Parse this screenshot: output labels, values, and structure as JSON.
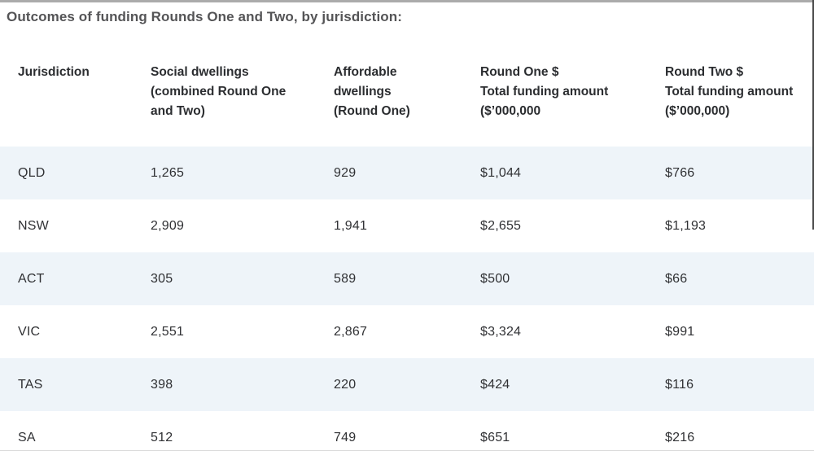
{
  "title": "Outcomes of funding Rounds One and Two, by jurisdiction:",
  "colors": {
    "stripe_blue": "#eef4f9",
    "title_gray": "#545456",
    "header_text": "#2b2d30",
    "cell_text": "#303134",
    "top_divider": "#ababab"
  },
  "table": {
    "columns": [
      {
        "label": "Jurisdiction"
      },
      {
        "label": "Social dwellings\n(combined Round One\nand Two)"
      },
      {
        "label": "Affordable\ndwellings\n(Round One)"
      },
      {
        "label": "Round One $\nTotal funding amount\n($’000,000"
      },
      {
        "label": "Round Two $\nTotal funding amount\n($’000,000)"
      }
    ],
    "rows": [
      {
        "jurisdiction": "QLD",
        "social_dwellings": "1,265",
        "affordable_dwellings": "929",
        "round_one_total": "$1,044",
        "round_two_total": "$766"
      },
      {
        "jurisdiction": "NSW",
        "social_dwellings": "2,909",
        "affordable_dwellings": "1,941",
        "round_one_total": "$2,655",
        "round_two_total": "$1,193"
      },
      {
        "jurisdiction": "ACT",
        "social_dwellings": "305",
        "affordable_dwellings": "589",
        "round_one_total": "$500",
        "round_two_total": "$66"
      },
      {
        "jurisdiction": "VIC",
        "social_dwellings": "2,551",
        "affordable_dwellings": "2,867",
        "round_one_total": "$3,324",
        "round_two_total": "$991"
      },
      {
        "jurisdiction": "TAS",
        "social_dwellings": "398",
        "affordable_dwellings": "220",
        "round_one_total": "$424",
        "round_two_total": "$116"
      },
      {
        "jurisdiction": "SA",
        "social_dwellings": "512",
        "affordable_dwellings": "749",
        "round_one_total": "$651",
        "round_two_total": "$216"
      }
    ]
  }
}
